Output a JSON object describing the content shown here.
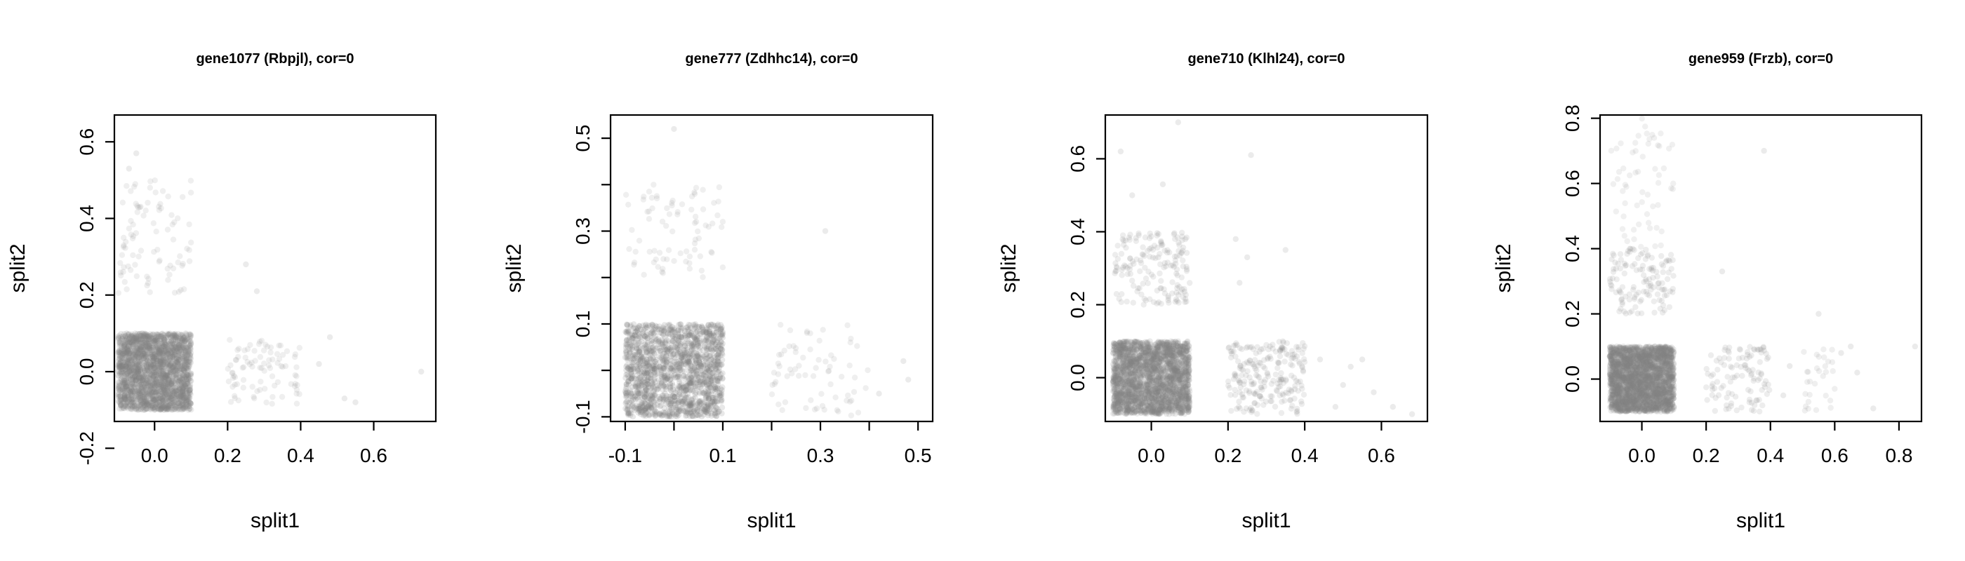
{
  "chart_data": [
    {
      "type": "scatter",
      "title": "gene1077 (Rbpjl), cor=0",
      "xlabel": "split1",
      "ylabel": "split2",
      "xlim": [
        -0.11,
        0.77
      ],
      "ylim": [
        -0.13,
        0.67
      ],
      "xticks": [
        0.0,
        0.2,
        0.4,
        0.6
      ],
      "xtick_labels": [
        "0.0",
        "0.2",
        "0.4",
        "0.6"
      ],
      "yticks": [
        -0.2,
        0.0,
        0.2,
        0.4,
        0.6
      ],
      "ytick_labels": [
        "-0.2",
        "0.0",
        "0.2",
        "0.4",
        "0.6"
      ],
      "point_color": "#808080",
      "clusters": [
        {
          "x": [
            -0.1,
            0.1
          ],
          "y": [
            -0.1,
            0.1
          ],
          "n": 2400,
          "alpha": 0.16
        },
        {
          "x": [
            -0.1,
            0.1
          ],
          "y": [
            0.2,
            0.5
          ],
          "n": 90,
          "alpha": 0.13
        },
        {
          "x": [
            0.2,
            0.4
          ],
          "y": [
            -0.09,
            0.09
          ],
          "n": 90,
          "alpha": 0.13
        }
      ],
      "points": [
        [
          -0.05,
          0.57
        ],
        [
          0.25,
          0.28
        ],
        [
          0.28,
          0.21
        ],
        [
          0.48,
          0.09
        ],
        [
          0.52,
          -0.07
        ],
        [
          0.73,
          0.0
        ],
        [
          0.55,
          -0.08
        ],
        [
          0.45,
          0.02
        ],
        [
          -0.07,
          0.53
        ]
      ]
    },
    {
      "type": "scatter",
      "title": "gene777 (Zdhhc14), cor=0",
      "xlabel": "split1",
      "ylabel": "split2",
      "xlim": [
        -0.13,
        0.53
      ],
      "ylim": [
        -0.11,
        0.55
      ],
      "xticks": [
        -0.1,
        0.0,
        0.1,
        0.2,
        0.3,
        0.4,
        0.5
      ],
      "xtick_labels": [
        "-0.1",
        "",
        "0.1",
        "",
        "0.3",
        "",
        "0.5"
      ],
      "yticks": [
        -0.1,
        0.0,
        0.1,
        0.2,
        0.3,
        0.4,
        0.5
      ],
      "ytick_labels": [
        "-0.1",
        "",
        "0.1",
        "",
        "0.3",
        "",
        "0.5"
      ],
      "point_color": "#808080",
      "clusters": [
        {
          "x": [
            -0.1,
            0.1
          ],
          "y": [
            -0.1,
            0.1
          ],
          "n": 1600,
          "alpha": 0.18
        },
        {
          "x": [
            -0.1,
            0.1
          ],
          "y": [
            0.2,
            0.4
          ],
          "n": 80,
          "alpha": 0.13
        },
        {
          "x": [
            0.2,
            0.4
          ],
          "y": [
            -0.1,
            0.1
          ],
          "n": 70,
          "alpha": 0.13
        }
      ],
      "points": [
        [
          0.0,
          0.52
        ],
        [
          0.31,
          0.3
        ],
        [
          0.48,
          -0.02
        ],
        [
          0.42,
          -0.05
        ],
        [
          0.47,
          0.02
        ]
      ]
    },
    {
      "type": "scatter",
      "title": "gene710 (Klhl24), cor=0",
      "xlabel": "split1",
      "ylabel": "split2",
      "xlim": [
        -0.12,
        0.72
      ],
      "ylim": [
        -0.12,
        0.72
      ],
      "xticks": [
        0.0,
        0.2,
        0.4,
        0.6
      ],
      "xtick_labels": [
        "0.0",
        "0.2",
        "0.4",
        "0.6"
      ],
      "yticks": [
        0.0,
        0.2,
        0.4,
        0.6
      ],
      "ytick_labels": [
        "0.0",
        "0.2",
        "0.4",
        "0.6"
      ],
      "point_color": "#808080",
      "clusters": [
        {
          "x": [
            -0.1,
            0.1
          ],
          "y": [
            -0.1,
            0.1
          ],
          "n": 2400,
          "alpha": 0.16
        },
        {
          "x": [
            -0.1,
            0.1
          ],
          "y": [
            0.2,
            0.4
          ],
          "n": 170,
          "alpha": 0.14
        },
        {
          "x": [
            0.2,
            0.4
          ],
          "y": [
            -0.1,
            0.1
          ],
          "n": 230,
          "alpha": 0.14
        }
      ],
      "points": [
        [
          -0.08,
          0.62
        ],
        [
          0.07,
          0.7
        ],
        [
          -0.05,
          0.5
        ],
        [
          0.03,
          0.53
        ],
        [
          0.26,
          0.61
        ],
        [
          0.22,
          0.38
        ],
        [
          0.25,
          0.33
        ],
        [
          0.23,
          0.26
        ],
        [
          0.35,
          0.35
        ],
        [
          0.44,
          0.05
        ],
        [
          0.5,
          -0.02
        ],
        [
          0.55,
          0.05
        ],
        [
          0.58,
          -0.04
        ],
        [
          0.63,
          -0.08
        ],
        [
          0.68,
          -0.1
        ],
        [
          0.48,
          -0.08
        ],
        [
          0.52,
          0.03
        ]
      ]
    },
    {
      "type": "scatter",
      "title": "gene959 (Frzb), cor=0",
      "xlabel": "split1",
      "ylabel": "split2",
      "xlim": [
        -0.13,
        0.87
      ],
      "ylim": [
        -0.13,
        0.81
      ],
      "xticks": [
        0.0,
        0.2,
        0.4,
        0.6,
        0.8
      ],
      "xtick_labels": [
        "0.0",
        "0.2",
        "0.4",
        "0.6",
        "0.8"
      ],
      "yticks": [
        0.0,
        0.2,
        0.4,
        0.6,
        0.8
      ],
      "ytick_labels": [
        "0.0",
        "0.2",
        "0.4",
        "0.6",
        "0.8"
      ],
      "point_color": "#808080",
      "clusters": [
        {
          "x": [
            -0.1,
            0.1
          ],
          "y": [
            -0.1,
            0.1
          ],
          "n": 2600,
          "alpha": 0.16
        },
        {
          "x": [
            -0.1,
            0.1
          ],
          "y": [
            0.2,
            0.4
          ],
          "n": 130,
          "alpha": 0.14
        },
        {
          "x": [
            -0.1,
            0.1
          ],
          "y": [
            0.4,
            0.8
          ],
          "n": 60,
          "alpha": 0.12
        },
        {
          "x": [
            0.2,
            0.4
          ],
          "y": [
            -0.1,
            0.1
          ],
          "n": 110,
          "alpha": 0.14
        },
        {
          "x": [
            0.5,
            0.6
          ],
          "y": [
            -0.1,
            0.1
          ],
          "n": 30,
          "alpha": 0.13
        }
      ],
      "points": [
        [
          0.25,
          0.33
        ],
        [
          0.38,
          0.7
        ],
        [
          0.55,
          0.2
        ],
        [
          0.62,
          0.08
        ],
        [
          0.67,
          0.02
        ],
        [
          0.72,
          -0.09
        ],
        [
          0.85,
          0.1
        ],
        [
          0.46,
          0.04
        ],
        [
          0.44,
          -0.05
        ],
        [
          0.65,
          0.1
        ]
      ]
    }
  ]
}
